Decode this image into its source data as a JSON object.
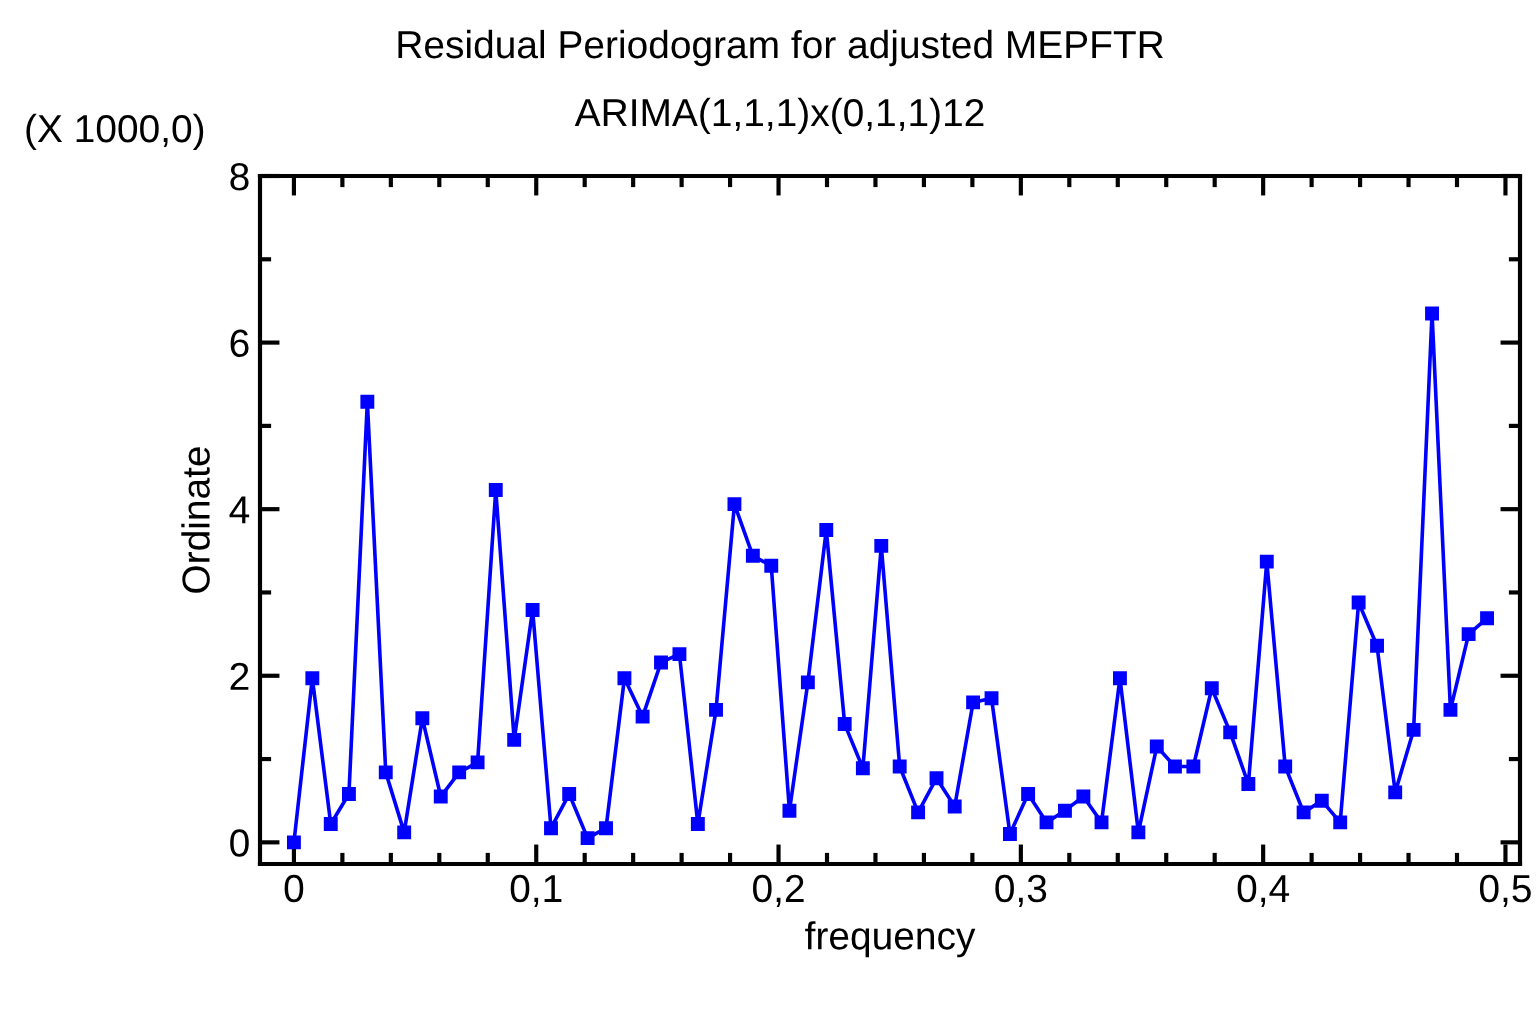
{
  "chart_data": {
    "type": "line",
    "title": "Residual Periodogram for adjusted MEPFTR",
    "subtitle": "ARIMA(1,1,1)x(0,1,1)12",
    "xlabel": "frequency",
    "ylabel": "Ordinate",
    "annotations": [
      "(X 1000,0)"
    ],
    "x": [
      0.0,
      0.0076,
      0.0152,
      0.0227,
      0.0303,
      0.0379,
      0.0455,
      0.053,
      0.0606,
      0.0682,
      0.0758,
      0.0833,
      0.0909,
      0.0985,
      0.1061,
      0.1136,
      0.1212,
      0.1288,
      0.1364,
      0.1439,
      0.1515,
      0.1591,
      0.1667,
      0.1742,
      0.1818,
      0.1894,
      0.197,
      0.2045,
      0.2121,
      0.2197,
      0.2273,
      0.2348,
      0.2424,
      0.25,
      0.2576,
      0.2652,
      0.2727,
      0.2803,
      0.2879,
      0.2955,
      0.303,
      0.3106,
      0.3182,
      0.3258,
      0.3333,
      0.3409,
      0.3485,
      0.3561,
      0.3636,
      0.3712,
      0.3788,
      0.3864,
      0.3939,
      0.4015,
      0.4091,
      0.4167,
      0.4242,
      0.4318,
      0.4394,
      0.447,
      0.4545,
      0.4621,
      0.4697,
      0.4773,
      0.4848,
      0.4924
    ],
    "series": [
      {
        "color": "#0000ff",
        "marker": "square",
        "line_style": "solid",
        "values": [
          0.0,
          1.97,
          0.22,
          0.58,
          5.29,
          0.84,
          0.12,
          1.49,
          0.55,
          0.84,
          0.96,
          4.23,
          1.23,
          2.79,
          0.17,
          0.58,
          0.05,
          0.17,
          1.97,
          1.51,
          2.16,
          2.26,
          0.22,
          1.59,
          4.06,
          3.44,
          3.32,
          0.38,
          1.92,
          3.75,
          1.42,
          0.89,
          3.56,
          0.91,
          0.36,
          0.77,
          0.43,
          1.68,
          1.73,
          0.1,
          0.58,
          0.24,
          0.38,
          0.55,
          0.24,
          1.97,
          0.12,
          1.15,
          0.91,
          0.91,
          1.85,
          1.32,
          0.7,
          3.37,
          0.91,
          0.36,
          0.5,
          0.24,
          2.88,
          2.36,
          0.6,
          1.35,
          6.35,
          1.59,
          2.5,
          2.69
        ]
      }
    ],
    "xlim": [
      -0.014,
      0.506
    ],
    "ylim": [
      -0.26,
      8
    ],
    "xticks": [
      {
        "value": 0,
        "label": "0"
      },
      {
        "value": 0.1,
        "label": "0,1"
      },
      {
        "value": 0.2,
        "label": "0,2"
      },
      {
        "value": 0.3,
        "label": "0,3"
      },
      {
        "value": 0.4,
        "label": "0,4"
      },
      {
        "value": 0.5,
        "label": "0,5"
      }
    ],
    "yticks": [
      0,
      2,
      4,
      6,
      8
    ],
    "grid": false,
    "legend": false
  }
}
